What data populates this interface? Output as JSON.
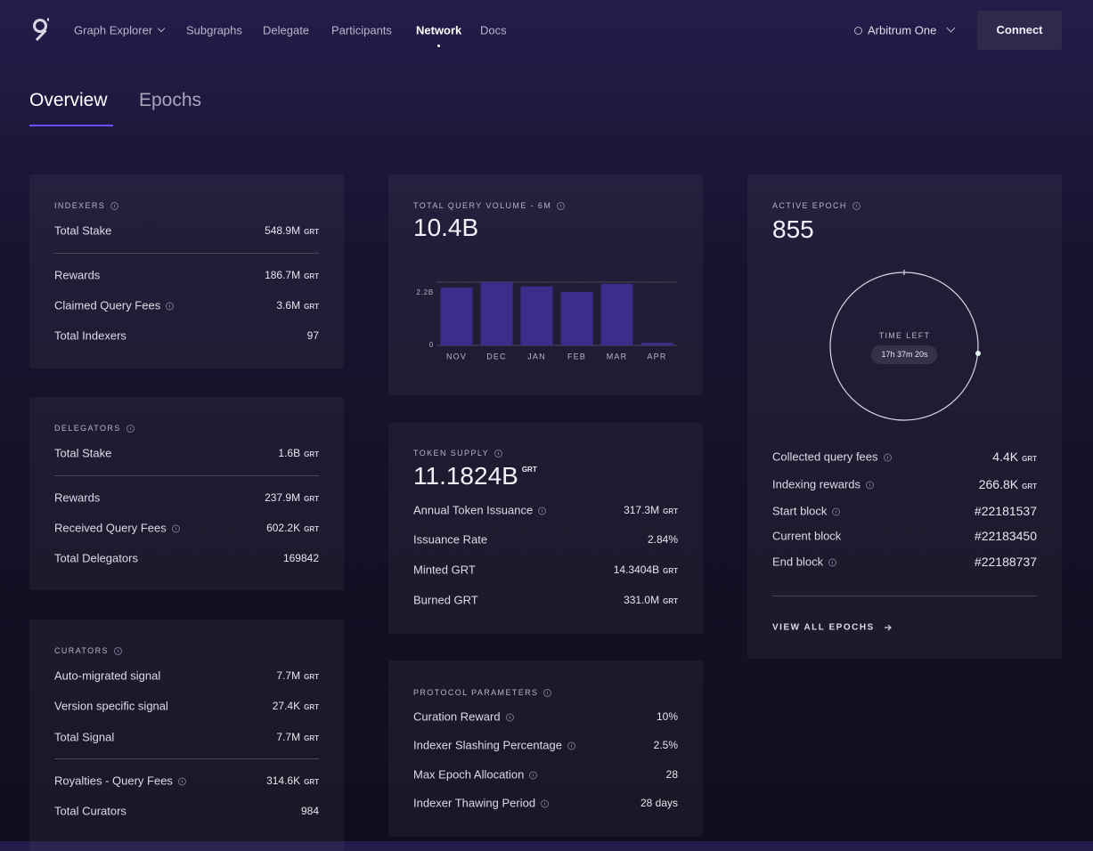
{
  "nav": {
    "links": [
      "Graph Explorer",
      "Subgraphs",
      "Delegate",
      "Participants",
      "Network",
      "Docs"
    ],
    "network": "Arbitrum One",
    "connect": "Connect"
  },
  "tabs": [
    "Overview",
    "Epochs"
  ],
  "indexers": {
    "title": "INDEXERS",
    "rows": [
      {
        "label": "Total Stake",
        "value": "548.9M",
        "unit": "GRT"
      },
      {
        "label": "Rewards",
        "value": "186.7M",
        "unit": "GRT"
      },
      {
        "label": "Claimed Query Fees",
        "value": "3.6M",
        "unit": "GRT",
        "info": true
      },
      {
        "label": "Total Indexers",
        "value": "97"
      }
    ]
  },
  "delegators": {
    "title": "DELEGATORS",
    "rows": [
      {
        "label": "Total Stake",
        "value": "1.6B",
        "unit": "GRT"
      },
      {
        "label": "Rewards",
        "value": "237.9M",
        "unit": "GRT"
      },
      {
        "label": "Received Query Fees",
        "value": "602.2K",
        "unit": "GRT",
        "info": true
      },
      {
        "label": "Total Delegators",
        "value": "169842"
      }
    ]
  },
  "curators": {
    "title": "CURATORS",
    "rows": [
      {
        "label": "Auto-migrated signal",
        "value": "7.7M",
        "unit": "GRT"
      },
      {
        "label": "Version specific signal",
        "value": "27.4K",
        "unit": "GRT"
      },
      {
        "label": "Total Signal",
        "value": "7.7M",
        "unit": "GRT"
      },
      {
        "label": "Royalties - Query Fees",
        "value": "314.6K",
        "unit": "GRT",
        "info": true
      },
      {
        "label": "Total Curators",
        "value": "984"
      }
    ]
  },
  "chart_data": {
    "type": "bar",
    "title": "TOTAL QUERY VOLUME - 6M",
    "subtitle": "10.4B",
    "categories": [
      "NOV",
      "DEC",
      "JAN",
      "FEB",
      "MAR",
      "APR"
    ],
    "values": [
      2.01,
      2.2,
      2.05,
      1.86,
      2.14,
      0.09
    ],
    "color": "#3b2d8a",
    "ylim": [
      0,
      2.2
    ],
    "yticks": [
      0,
      {
        "value": 2.2,
        "label": "2.2B"
      }
    ]
  },
  "token_supply": {
    "title": "TOKEN SUPPLY",
    "value": "11.1824B",
    "unit": "GRT",
    "rows": [
      {
        "label": "Annual Token Issuance",
        "value": "317.3M",
        "unit": "GRT",
        "info": true
      },
      {
        "label": "Issuance Rate",
        "value": "2.84%"
      },
      {
        "label": "Minted GRT",
        "value": "14.3404B",
        "unit": "GRT"
      },
      {
        "label": "Burned GRT",
        "value": "331.0M",
        "unit": "GRT"
      }
    ]
  },
  "protocol": {
    "title": "PROTOCOL PARAMETERS",
    "rows": [
      {
        "label": "Curation Reward",
        "value": "10%",
        "info": true
      },
      {
        "label": "Indexer Slashing Percentage",
        "value": "2.5%",
        "info": true
      },
      {
        "label": "Max Epoch Allocation",
        "value": "28",
        "info": true
      },
      {
        "label": "Indexer Thawing Period",
        "value": "28 days",
        "info": true
      }
    ]
  },
  "epoch": {
    "title": "ACTIVE EPOCH",
    "value": "855",
    "timer_label": "TIME LEFT",
    "time_left": "17h 37m 20s",
    "rows": [
      {
        "label": "Collected query fees",
        "value": "4.4K",
        "unit": "GRT",
        "info": true
      },
      {
        "label": "Indexing rewards",
        "value": "266.8K",
        "unit": "GRT",
        "info": true
      },
      {
        "label": "Start block",
        "value": "#22181537",
        "info": true
      },
      {
        "label": "Current block",
        "value": "#22183450"
      },
      {
        "label": "End block",
        "value": "#22188737",
        "info": true
      }
    ],
    "link": "VIEW ALL EPOCHS"
  }
}
